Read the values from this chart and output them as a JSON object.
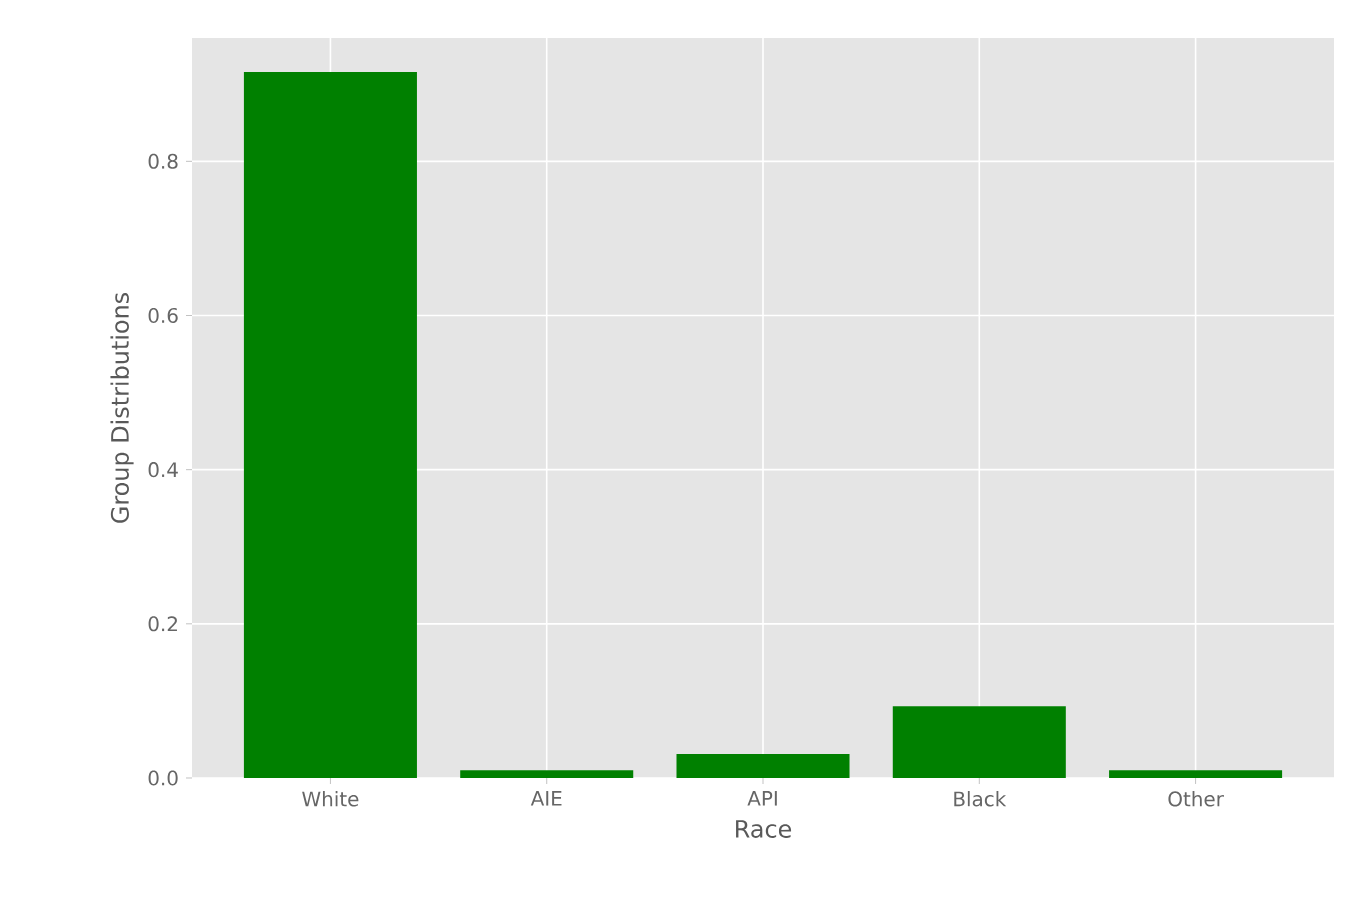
{
  "chart_data": {
    "type": "bar",
    "xlabel": "Race",
    "ylabel": "Group Distributions",
    "categories": [
      "White",
      "AIE",
      "API",
      "Black",
      "Other"
    ],
    "values": [
      0.916,
      0.01,
      0.031,
      0.093,
      0.01
    ],
    "color": "#008000",
    "ylim": [
      0,
      0.96
    ],
    "yticks": [
      {
        "value": 0,
        "label": "0.0"
      },
      0.2,
      0.4,
      0.6,
      0.8
    ],
    "grid": true
  }
}
